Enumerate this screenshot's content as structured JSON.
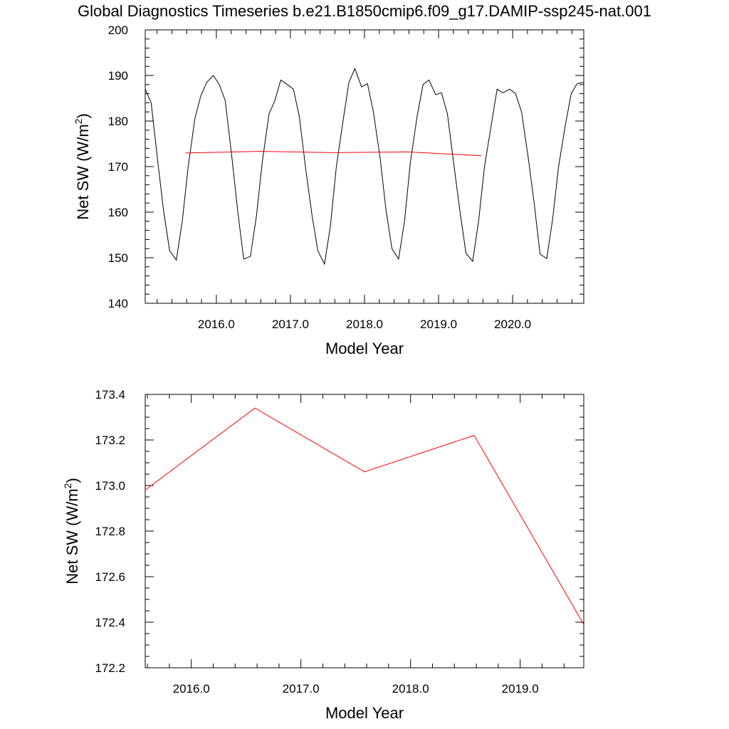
{
  "title": "Global Diagnostics Timeseries b.e21.B1850cmip6.f09_g17.DAMIP-ssp245-nat.001",
  "chart_data": [
    {
      "type": "line",
      "xlabel": "Model Year",
      "ylabel_main": "Net SW (W/m",
      "ylabel_sup": "2",
      "ylabel_close": ")",
      "xlim": [
        2015.04,
        2020.96
      ],
      "ylim": [
        140,
        200
      ],
      "xticks": [
        2016,
        2017,
        2018,
        2019,
        2020
      ],
      "xtick_labels": [
        "2016.0",
        "2017.0",
        "2018.0",
        "2019.0",
        "2020.0"
      ],
      "yticks": [
        140,
        150,
        160,
        170,
        180,
        190,
        200
      ],
      "ytick_labels": [
        "140",
        "150",
        "160",
        "170",
        "180",
        "190",
        "200"
      ],
      "grid": false,
      "legend": "none",
      "series": [
        {
          "color": "#000000",
          "x": [
            2015.04,
            2015.12,
            2015.21,
            2015.29,
            2015.37,
            2015.46,
            2015.54,
            2015.62,
            2015.71,
            2015.79,
            2015.87,
            2015.96,
            2016.04,
            2016.12,
            2016.21,
            2016.29,
            2016.37,
            2016.46,
            2016.54,
            2016.62,
            2016.71,
            2016.79,
            2016.87,
            2016.96,
            2017.04,
            2017.12,
            2017.21,
            2017.29,
            2017.37,
            2017.46,
            2017.54,
            2017.62,
            2017.71,
            2017.79,
            2017.87,
            2017.96,
            2018.04,
            2018.12,
            2018.21,
            2018.29,
            2018.37,
            2018.46,
            2018.54,
            2018.62,
            2018.71,
            2018.79,
            2018.87,
            2018.96,
            2019.04,
            2019.12,
            2019.21,
            2019.29,
            2019.37,
            2019.46,
            2019.54,
            2019.62,
            2019.71,
            2019.79,
            2019.87,
            2019.96,
            2020.04,
            2020.12,
            2020.21,
            2020.29,
            2020.37,
            2020.46,
            2020.54,
            2020.62,
            2020.71,
            2020.79,
            2020.87,
            2020.96
          ],
          "y": [
            187,
            184,
            171,
            160,
            151.5,
            149.5,
            158,
            170,
            180.5,
            185.5,
            188.5,
            190,
            188,
            184.5,
            172,
            160,
            149.7,
            150.3,
            159,
            171,
            181.5,
            184.5,
            189,
            188,
            187,
            181,
            169,
            159.5,
            151.5,
            148.6,
            157,
            170,
            180,
            188.5,
            191.5,
            187.5,
            188.2,
            182,
            172,
            160.5,
            152,
            149.7,
            158,
            171,
            181,
            188,
            189,
            185.8,
            186.2,
            181.5,
            170,
            160,
            151,
            149.2,
            158,
            170,
            179,
            187,
            186.2,
            187,
            186,
            182,
            172,
            162,
            150.8,
            149.8,
            158.5,
            170,
            179,
            186,
            188.2,
            188.5
          ]
        },
        {
          "color": "#ff0000",
          "x": [
            2015.58,
            2016.58,
            2017.58,
            2018.58,
            2019.58
          ],
          "y": [
            172.98,
            173.34,
            173.06,
            173.22,
            172.39
          ]
        }
      ]
    },
    {
      "type": "line",
      "xlabel": "Model Year",
      "ylabel_main": "Net SW (W/m",
      "ylabel_sup": "2",
      "ylabel_close": ")",
      "xlim": [
        2015.58,
        2019.58
      ],
      "ylim": [
        172.2,
        173.4
      ],
      "xticks": [
        2016,
        2017,
        2018,
        2019
      ],
      "xtick_labels": [
        "2016.0",
        "2017.0",
        "2018.0",
        "2019.0"
      ],
      "yticks": [
        172.2,
        172.4,
        172.6,
        172.8,
        173.0,
        173.2,
        173.4
      ],
      "ytick_labels": [
        "172.2",
        "172.4",
        "172.6",
        "172.8",
        "173.0",
        "173.2",
        "173.4"
      ],
      "grid": false,
      "legend": "none",
      "series": [
        {
          "color": "#ff0000",
          "x": [
            2015.58,
            2016.58,
            2017.58,
            2018.58,
            2019.58
          ],
          "y": [
            172.98,
            173.34,
            173.06,
            173.22,
            172.39
          ]
        }
      ]
    }
  ]
}
